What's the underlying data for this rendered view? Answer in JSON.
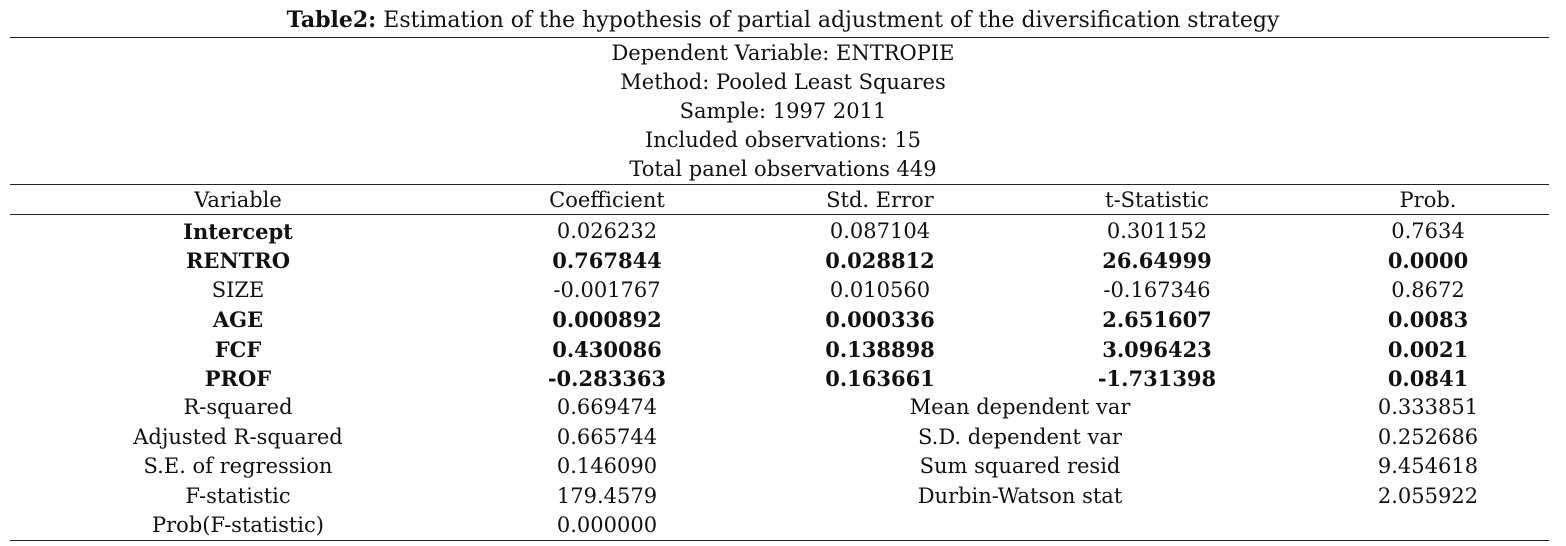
{
  "caption": {
    "label": "Table2:",
    "text": " Estimation of the hypothesis of partial adjustment of the diversification strategy"
  },
  "header_info": [
    "Dependent Variable: ENTROPIE",
    "Method: Pooled Least Squares",
    "Sample: 1997 2011",
    "Included observations: 15",
    "Total panel observations 449"
  ],
  "columns": [
    "Variable",
    "Coefficient",
    "Std. Error",
    "t-Statistic",
    "Prob."
  ],
  "rows": [
    {
      "variable": "Intercept",
      "coefficient": "0.026232",
      "std_error": "0.087104",
      "t_statistic": "0.301152",
      "prob": "0.7634",
      "bold_name": true,
      "bold_values": false
    },
    {
      "variable": "RENTRO",
      "coefficient": "0.767844",
      "std_error": "0.028812",
      "t_statistic": "26.64999",
      "prob": "0.0000",
      "bold_name": true,
      "bold_values": true
    },
    {
      "variable": "SIZE",
      "coefficient": "-0.001767",
      "std_error": "0.010560",
      "t_statistic": "-0.167346",
      "prob": "0.8672",
      "bold_name": false,
      "bold_values": false
    },
    {
      "variable": "AGE",
      "coefficient": "0.000892",
      "std_error": "0.000336",
      "t_statistic": "2.651607",
      "prob": "0.0083",
      "bold_name": true,
      "bold_values": true
    },
    {
      "variable": "FCF",
      "coefficient": "0.430086",
      "std_error": "0.138898",
      "t_statistic": "3.096423",
      "prob": "0.0021",
      "bold_name": true,
      "bold_values": true
    },
    {
      "variable": "PROF",
      "coefficient": "-0.283363",
      "std_error": "0.163661",
      "t_statistic": "-1.731398",
      "prob": "0.0841",
      "bold_name": true,
      "bold_values": true
    }
  ],
  "stats": [
    {
      "left_label": "R-squared",
      "left_value": "0.669474",
      "right_label": "Mean dependent var",
      "right_value": "0.333851"
    },
    {
      "left_label": "Adjusted R-squared",
      "left_value": "0.665744",
      "right_label": "S.D. dependent var",
      "right_value": "0.252686"
    },
    {
      "left_label": "S.E. of regression",
      "left_value": "0.146090",
      "right_label": "Sum squared resid",
      "right_value": "9.454618"
    },
    {
      "left_label": "F-statistic",
      "left_value": "179.4579",
      "right_label": "Durbin-Watson stat",
      "right_value": "2.055922"
    },
    {
      "left_label": "Prob(F-statistic)",
      "left_value": "0.000000",
      "right_label": "",
      "right_value": ""
    }
  ]
}
